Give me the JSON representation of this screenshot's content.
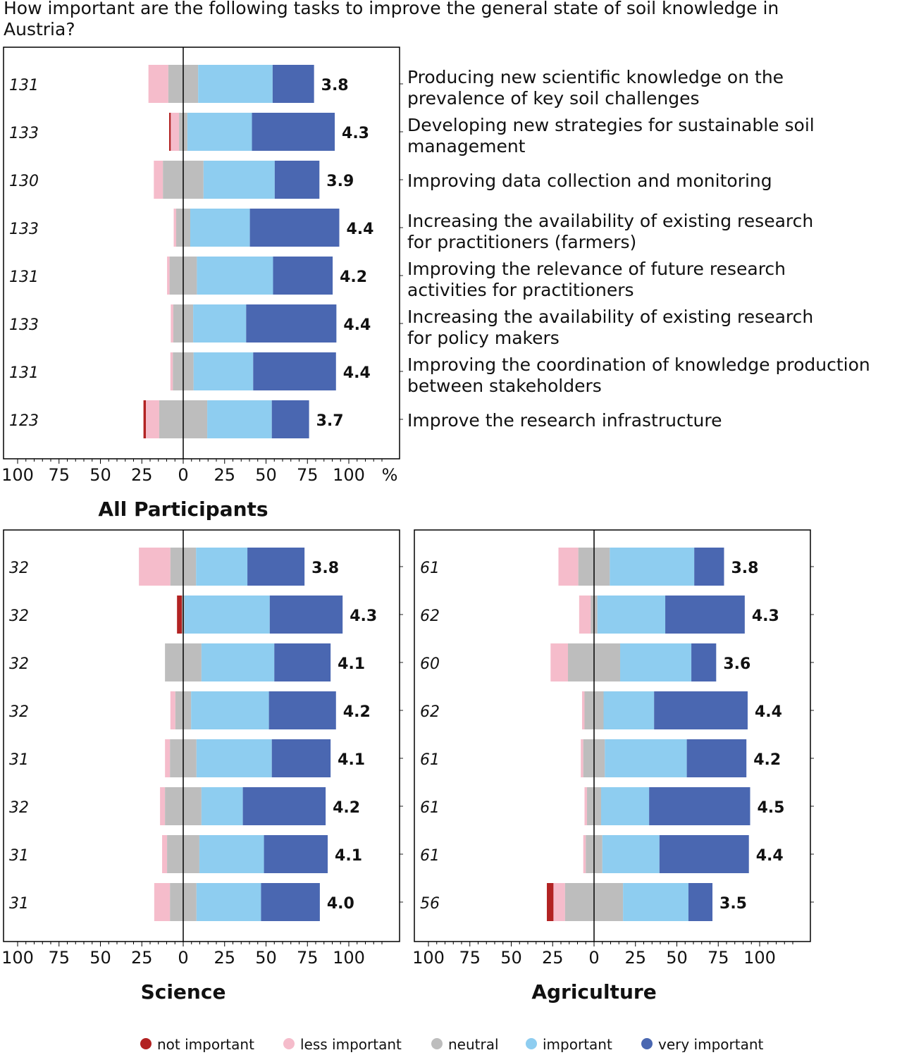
{
  "question": [
    "How important are the following tasks to improve the general state of soil knowledge in",
    "Austria?"
  ],
  "colors": {
    "not important": "#b22222",
    "less important": "#f5bccb",
    "neutral": "#bdbdbd",
    "important": "#8ecdf0",
    "very important": "#4a67b1"
  },
  "legend": [
    "not important",
    "less important",
    "neutral",
    "important",
    "very important"
  ],
  "tasks": [
    [
      "Producing new scientific knowledge on the",
      "prevalence of key soil challenges"
    ],
    [
      "Developing new strategies for sustainable soil",
      "management"
    ],
    [
      "Improving data collection and monitoring"
    ],
    [
      "Increasing the availability of existing research",
      "for practitioners (farmers)"
    ],
    [
      "Improving the relevance of future research",
      "activities for practitioners"
    ],
    [
      "Increasing the availability of existing research",
      "for policy makers"
    ],
    [
      "Improving the coordination of knowledge production",
      "between stakeholders"
    ],
    [
      "Improve the research infrastructure"
    ]
  ],
  "chart_data": [
    {
      "type": "bar",
      "orientation": "horizontal diverging stacked",
      "title": "All Participants",
      "unit": "%",
      "xlim": [
        -100,
        100
      ],
      "xticks": [
        "100",
        "75",
        "50",
        "25",
        "0",
        "25",
        "50",
        "75",
        "100"
      ],
      "categories": [
        "not important",
        "less important",
        "neutral",
        "important",
        "very important"
      ],
      "n": [
        131,
        133,
        130,
        133,
        131,
        133,
        131,
        123
      ],
      "means": [
        "3.8",
        "4.3",
        "3.9",
        "4.4",
        "4.2",
        "4.4",
        "4.4",
        "3.7"
      ],
      "values": [
        [
          0,
          12,
          18,
          45,
          25
        ],
        [
          1,
          5,
          5,
          39,
          50
        ],
        [
          0,
          5.5,
          24.5,
          43,
          27
        ],
        [
          0,
          1.5,
          8.5,
          36,
          54
        ],
        [
          0,
          1.5,
          16.5,
          46,
          36
        ],
        [
          0,
          1.5,
          12,
          32,
          54.5
        ],
        [
          0,
          1.5,
          12.5,
          36,
          50
        ],
        [
          1.5,
          8,
          29,
          39,
          22.5
        ]
      ]
    },
    {
      "type": "bar",
      "orientation": "horizontal diverging stacked",
      "title": "Science",
      "xlim": [
        -100,
        100
      ],
      "xticks": [
        "100",
        "75",
        "50",
        "25",
        "0",
        "25",
        "50",
        "75",
        "100"
      ],
      "n": [
        32,
        32,
        32,
        32,
        31,
        32,
        31,
        31
      ],
      "means": [
        "3.8",
        "4.3",
        "4.1",
        "4.2",
        "4.1",
        "4.2",
        "4.1",
        "4.0"
      ],
      "values": [
        [
          0,
          19,
          15.5,
          31,
          34.5
        ],
        [
          3,
          0,
          1.5,
          51.5,
          44
        ],
        [
          0,
          0,
          22,
          44,
          34
        ],
        [
          0,
          3,
          9.5,
          47,
          40.5
        ],
        [
          0,
          3,
          16,
          45.5,
          35.5
        ],
        [
          0,
          3,
          22,
          25,
          50
        ],
        [
          0,
          3,
          19.5,
          39,
          38.5
        ],
        [
          0,
          9.5,
          16,
          39,
          35.5
        ]
      ]
    },
    {
      "type": "bar",
      "orientation": "horizontal diverging stacked",
      "title": "Agriculture",
      "xlim": [
        -100,
        100
      ],
      "xticks": [
        "100",
        "75",
        "50",
        "25",
        "0",
        "25",
        "50",
        "75",
        "100"
      ],
      "n": [
        61,
        62,
        60,
        62,
        61,
        61,
        61,
        56
      ],
      "means": [
        "3.8",
        "4.3",
        "3.6",
        "4.4",
        "4.2",
        "4.5",
        "4.4",
        "3.5"
      ],
      "values": [
        [
          0,
          12,
          19,
          51,
          18
        ],
        [
          0,
          7,
          4,
          41,
          48
        ],
        [
          0,
          10.5,
          31.5,
          43,
          15
        ],
        [
          0,
          1.5,
          11.5,
          30.5,
          56.5
        ],
        [
          0,
          1.5,
          13,
          49.5,
          36
        ],
        [
          0,
          1.5,
          8.5,
          29,
          61
        ],
        [
          0,
          1.5,
          10,
          34.5,
          54
        ],
        [
          4,
          7,
          35,
          39.5,
          14.5
        ]
      ]
    }
  ]
}
